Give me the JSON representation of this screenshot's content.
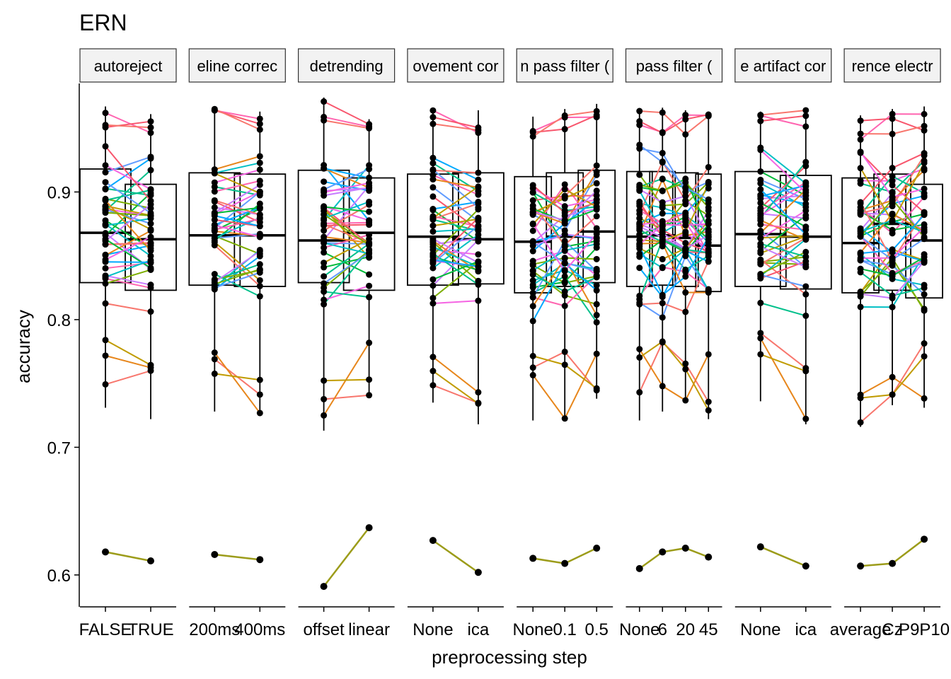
{
  "chart_data": {
    "type": "faceted paired dot + boxplot",
    "title": "ERN",
    "xlabel": "preprocessing step",
    "ylabel": "accuracy",
    "ylim": [
      0.575,
      0.985
    ],
    "yticks": [
      0.6,
      0.7,
      0.8,
      0.9
    ],
    "ytick_labels": [
      "0.6",
      "0.7",
      "0.8",
      "0.9"
    ],
    "facets": [
      {
        "label": "autoreject",
        "categories": [
          "FALSE",
          "TRUE"
        ],
        "box": [
          {
            "q1": 0.829,
            "median": 0.868,
            "q3": 0.918,
            "whisker_low": 0.731,
            "whisker_high": 0.967
          },
          {
            "q1": 0.823,
            "median": 0.863,
            "q3": 0.906,
            "whisker_low": 0.722,
            "whisker_high": 0.961
          }
        ],
        "outlier_pair": [
          0.618,
          0.611
        ]
      },
      {
        "label": "eline correc",
        "categories": [
          "200ms",
          "400ms"
        ],
        "box": [
          {
            "q1": 0.827,
            "median": 0.866,
            "q3": 0.915,
            "whisker_low": 0.728,
            "whisker_high": 0.966
          },
          {
            "q1": 0.826,
            "median": 0.866,
            "q3": 0.914,
            "whisker_low": 0.725,
            "whisker_high": 0.963
          }
        ],
        "outlier_pair": [
          0.616,
          0.612
        ]
      },
      {
        "label": "detrending",
        "categories": [
          "offset",
          "linear"
        ],
        "box": [
          {
            "q1": 0.829,
            "median": 0.862,
            "q3": 0.917,
            "whisker_low": 0.713,
            "whisker_high": 0.974
          },
          {
            "q1": 0.823,
            "median": 0.868,
            "q3": 0.911,
            "whisker_low": 0.74,
            "whisker_high": 0.957
          }
        ],
        "outlier_pair": [
          0.591,
          0.637
        ]
      },
      {
        "label": "ovement cor",
        "categories": [
          "None",
          "ica"
        ],
        "box": [
          {
            "q1": 0.827,
            "median": 0.865,
            "q3": 0.914,
            "whisker_low": 0.735,
            "whisker_high": 0.965
          },
          {
            "q1": 0.828,
            "median": 0.863,
            "q3": 0.915,
            "whisker_low": 0.718,
            "whisker_high": 0.964
          }
        ],
        "outlier_pair": [
          0.627,
          0.602
        ]
      },
      {
        "label": "n pass filter (",
        "categories": [
          "None",
          "0.1",
          "0.5"
        ],
        "box": [
          {
            "q1": 0.821,
            "median": 0.861,
            "q3": 0.912,
            "whisker_low": 0.721,
            "whisker_high": 0.959
          },
          {
            "q1": 0.826,
            "median": 0.865,
            "q3": 0.915,
            "whisker_low": 0.721,
            "whisker_high": 0.965
          },
          {
            "q1": 0.829,
            "median": 0.869,
            "q3": 0.917,
            "whisker_low": 0.738,
            "whisker_high": 0.969
          }
        ],
        "outlier_pair": [
          0.613,
          0.609,
          0.621
        ]
      },
      {
        "label": "pass filter (",
        "categories": [
          "None",
          "6",
          "20",
          "45"
        ],
        "box": [
          {
            "q1": 0.826,
            "median": 0.865,
            "q3": 0.916,
            "whisker_low": 0.721,
            "whisker_high": 0.965
          },
          {
            "q1": 0.827,
            "median": 0.866,
            "q3": 0.916,
            "whisker_low": 0.728,
            "whisker_high": 0.966
          },
          {
            "q1": 0.826,
            "median": 0.864,
            "q3": 0.915,
            "whisker_low": 0.735,
            "whisker_high": 0.964
          },
          {
            "q1": 0.822,
            "median": 0.858,
            "q3": 0.914,
            "whisker_low": 0.722,
            "whisker_high": 0.963
          }
        ],
        "outlier_pair": [
          0.605,
          0.618,
          0.621,
          0.614
        ]
      },
      {
        "label": "e artifact cor",
        "categories": [
          "None",
          "ica"
        ],
        "box": [
          {
            "q1": 0.826,
            "median": 0.867,
            "q3": 0.916,
            "whisker_low": 0.736,
            "whisker_high": 0.963
          },
          {
            "q1": 0.824,
            "median": 0.865,
            "q3": 0.913,
            "whisker_low": 0.718,
            "whisker_high": 0.966
          }
        ],
        "outlier_pair": [
          0.622,
          0.607
        ]
      },
      {
        "label": "rence electr",
        "categories": [
          "average",
          "Cz",
          "P9P10"
        ],
        "box": [
          {
            "q1": 0.821,
            "median": 0.86,
            "q3": 0.911,
            "whisker_low": 0.716,
            "whisker_high": 0.96
          },
          {
            "q1": 0.823,
            "median": 0.875,
            "q3": 0.914,
            "whisker_low": 0.733,
            "whisker_high": 0.965
          },
          {
            "q1": 0.817,
            "median": 0.862,
            "q3": 0.906,
            "whisker_low": 0.731,
            "whisker_high": 0.967
          }
        ],
        "outlier_pair": [
          0.607,
          0.609,
          0.628
        ]
      }
    ],
    "series_colors": [
      "#F8766D",
      "#E7861B",
      "#C09B00",
      "#7CAE00",
      "#00BA38",
      "#00C08B",
      "#00BFC4",
      "#00A9FF",
      "#619CFF",
      "#C77CFF",
      "#F564E3",
      "#FF64B0",
      "#F8566D"
    ],
    "outlier_color": "#9C9C1A",
    "grid": false,
    "legend": "none"
  }
}
